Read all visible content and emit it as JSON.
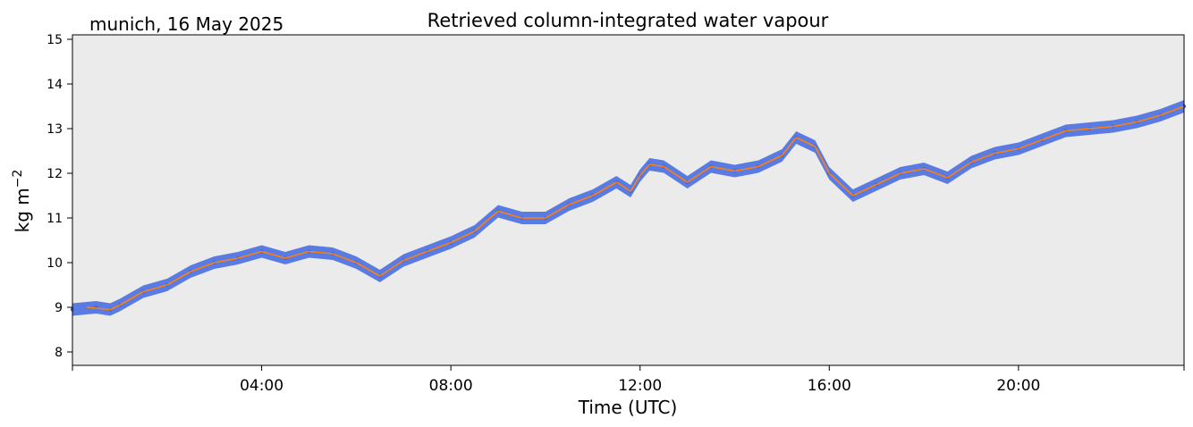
{
  "chart_data": {
    "type": "scatter",
    "title": "Retrieved column-integrated water vapour",
    "subtitle": "munich, 16 May 2025",
    "xlabel": "Time (UTC)",
    "ylabel_base": "kg m",
    "ylabel_exp": "−2",
    "x_unit": "hours UTC",
    "xlim": [
      0,
      23.5
    ],
    "ylim": [
      7.7,
      15.1
    ],
    "x_ticks": [
      {
        "value": 4,
        "label": "04:00"
      },
      {
        "value": 8,
        "label": "08:00"
      },
      {
        "value": 12,
        "label": "12:00"
      },
      {
        "value": 16,
        "label": "16:00"
      },
      {
        "value": 20,
        "label": "20:00"
      }
    ],
    "y_ticks": [
      8,
      9,
      10,
      11,
      12,
      13,
      14,
      15
    ],
    "grid": false,
    "colors": {
      "background": "#ebebeb",
      "observations": "#4169e1",
      "smoothed": "#ff7f0e"
    },
    "series": [
      {
        "kind": "points",
        "x": [
          0.0,
          0.5,
          0.8,
          1.0,
          1.5,
          2.0,
          2.5,
          3.0,
          3.5,
          4.0,
          4.5,
          5.0,
          5.5,
          6.0,
          6.5,
          7.0,
          7.5,
          8.0,
          8.5,
          9.0,
          9.5,
          10.0,
          10.5,
          11.0,
          11.5,
          11.8,
          12.0,
          12.2,
          12.5,
          13.0,
          13.5,
          14.0,
          14.5,
          15.0,
          15.3,
          15.7,
          16.0,
          16.5,
          17.0,
          17.5,
          18.0,
          18.5,
          19.0,
          19.5,
          20.0,
          20.5,
          21.0,
          21.5,
          22.0,
          22.5,
          23.0,
          23.5
        ],
        "y": [
          8.95,
          9.0,
          8.95,
          9.05,
          9.35,
          9.5,
          9.8,
          10.0,
          10.1,
          10.25,
          10.1,
          10.25,
          10.2,
          10.0,
          9.7,
          10.05,
          10.25,
          10.45,
          10.7,
          11.15,
          11.0,
          11.0,
          11.3,
          11.5,
          11.8,
          11.6,
          11.95,
          12.2,
          12.15,
          11.8,
          12.15,
          12.05,
          12.15,
          12.4,
          12.8,
          12.6,
          12.0,
          11.5,
          11.75,
          12.0,
          12.1,
          11.9,
          12.25,
          12.45,
          12.55,
          12.75,
          12.95,
          13.0,
          13.05,
          13.15,
          13.3,
          13.5
        ]
      },
      {
        "kind": "line",
        "x": [
          0.3,
          0.8,
          1.0,
          1.5,
          2.0,
          2.5,
          3.0,
          3.5,
          4.0,
          4.5,
          5.0,
          5.5,
          6.0,
          6.5,
          7.0,
          7.5,
          8.0,
          8.5,
          9.0,
          9.5,
          10.0,
          10.5,
          11.0,
          11.5,
          11.8,
          12.0,
          12.2,
          12.5,
          13.0,
          13.5,
          14.0,
          14.5,
          15.0,
          15.3,
          15.7,
          16.0,
          16.5,
          17.0,
          17.5,
          18.0,
          18.5,
          19.0,
          19.5,
          20.0,
          20.5,
          21.0,
          21.5,
          22.0,
          22.5,
          23.0,
          23.5
        ],
        "y": [
          9.0,
          8.95,
          9.05,
          9.35,
          9.5,
          9.8,
          10.0,
          10.1,
          10.25,
          10.1,
          10.25,
          10.2,
          10.0,
          9.7,
          10.05,
          10.25,
          10.45,
          10.7,
          11.15,
          11.0,
          11.0,
          11.3,
          11.5,
          11.8,
          11.6,
          11.95,
          12.2,
          12.15,
          11.8,
          12.15,
          12.05,
          12.15,
          12.4,
          12.8,
          12.6,
          12.0,
          11.5,
          11.75,
          12.0,
          12.1,
          11.9,
          12.25,
          12.45,
          12.55,
          12.75,
          12.95,
          13.0,
          13.05,
          13.15,
          13.3,
          13.5
        ]
      }
    ]
  }
}
